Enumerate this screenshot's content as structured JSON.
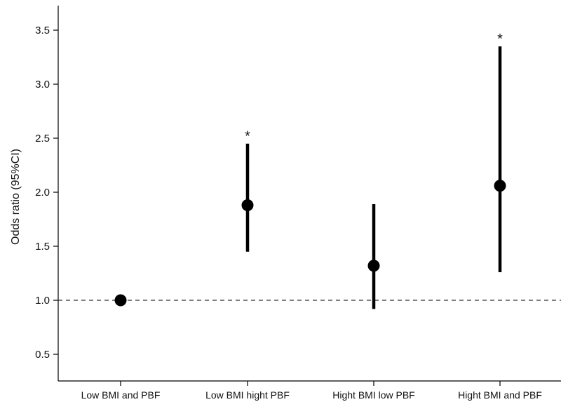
{
  "chart_data": {
    "type": "scatter",
    "ylabel": "Odds ratio (95%CI)",
    "ylim": [
      0.25,
      3.75
    ],
    "yticks": [
      "0.5",
      "1.0",
      "1.5",
      "2.0",
      "2.5",
      "3.0",
      "3.5"
    ],
    "reference_line": 1.0,
    "categories": [
      "Low BMI and PBF",
      "Low BMI hight PBF",
      "Hight BMI low PBF",
      "Hight BMI and PBF"
    ],
    "points": [
      {
        "category": "Low BMI and PBF",
        "or": 1.0,
        "lower": null,
        "upper": null,
        "significance": ""
      },
      {
        "category": "Low BMI hight PBF",
        "or": 1.88,
        "lower": 1.45,
        "upper": 2.45,
        "significance": "*"
      },
      {
        "category": "Hight BMI low PBF",
        "or": 1.32,
        "lower": 0.92,
        "upper": 1.89,
        "significance": ""
      },
      {
        "category": "Hight BMI and PBF",
        "or": 2.06,
        "lower": 1.26,
        "upper": 3.35,
        "significance": "*"
      }
    ],
    "grid": false,
    "colors": {
      "marks": "#000000",
      "reference": "#333333"
    }
  }
}
